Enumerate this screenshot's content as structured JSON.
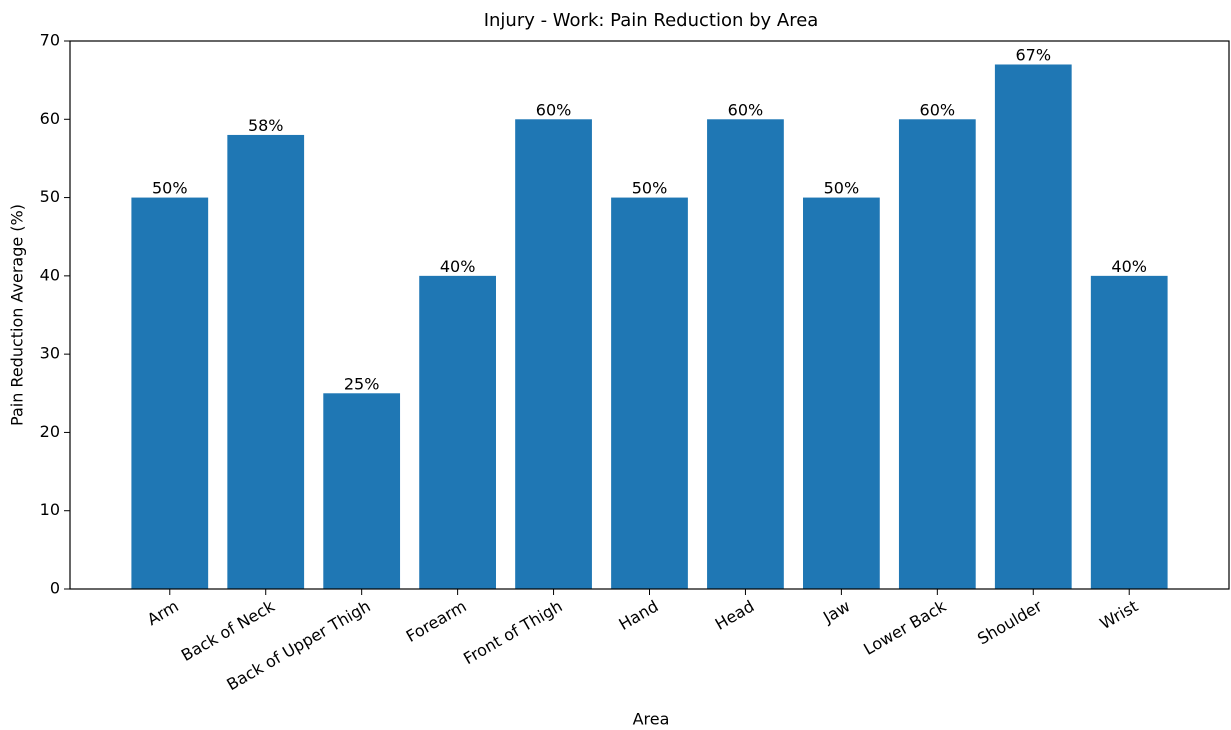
{
  "chart_data": {
    "type": "bar",
    "title": "Injury - Work: Pain Reduction by Area",
    "x_label": "Area",
    "y_label": "Pain Reduction Average (%)",
    "categories": [
      "Arm",
      "Back of Neck",
      "Back of Upper Thigh",
      "Forearm",
      "Front of Thigh",
      "Hand",
      "Head",
      "Jaw",
      "Lower Back",
      "Shoulder",
      "Wrist"
    ],
    "values": [
      50,
      58,
      25,
      40,
      60,
      50,
      60,
      50,
      60,
      67,
      40
    ],
    "value_labels": [
      "50%",
      "58%",
      "25%",
      "40%",
      "60%",
      "50%",
      "60%",
      "50%",
      "60%",
      "67%",
      "40%"
    ],
    "color": "#1f77b4",
    "ylim": [
      0,
      70
    ],
    "yticks": [
      0,
      10,
      20,
      30,
      40,
      50,
      60,
      70
    ],
    "grid": false
  }
}
